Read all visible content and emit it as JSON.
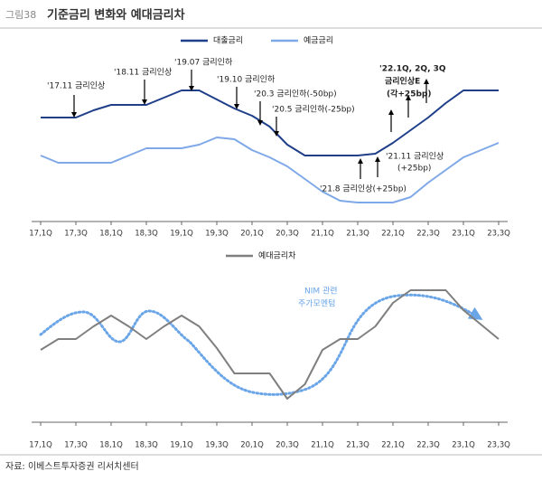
{
  "header": {
    "figure_label": "그림38",
    "title": "기준금리 변화와 예대금리차"
  },
  "chart_data": [
    {
      "type": "line",
      "categories": [
        "17,1Q",
        null,
        "17,3Q",
        null,
        "18,1Q",
        null,
        "18,3Q",
        null,
        "19,1Q",
        null,
        "19,3Q",
        null,
        "20,1Q",
        null,
        "20,3Q",
        null,
        "21,1Q",
        null,
        "21,3Q",
        null,
        "22,1Q",
        null,
        "22,3Q",
        null,
        "23,1Q",
        null,
        "23,3Q"
      ],
      "series": [
        {
          "name": "대출금리",
          "color": "#1f3f8a",
          "values": [
            5.0,
            5.0,
            5.0,
            5.4,
            5.7,
            5.7,
            5.7,
            6.1,
            6.5,
            6.5,
            6.0,
            5.5,
            5.1,
            4.5,
            3.5,
            2.9,
            2.9,
            2.9,
            2.9,
            3.0,
            3.6,
            4.3,
            5.0,
            5.8,
            6.5,
            6.5,
            6.5
          ]
        },
        {
          "name": "예금금리",
          "color": "#7fa8e8",
          "values": [
            2.9,
            2.5,
            2.5,
            2.5,
            2.5,
            2.9,
            3.3,
            3.3,
            3.3,
            3.5,
            3.9,
            3.8,
            3.2,
            2.8,
            2.3,
            1.6,
            0.9,
            0.4,
            0.3,
            0.3,
            0.3,
            0.6,
            1.4,
            2.1,
            2.8,
            3.2,
            3.6
          ]
        }
      ],
      "ylim": [
        0,
        10
      ],
      "legend": "top",
      "annotations": [
        {
          "lines": [
            "'17.11 금리인상"
          ]
        },
        {
          "lines": [
            "'18.11 금리인상"
          ]
        },
        {
          "lines": [
            "'19.07 금리인하"
          ]
        },
        {
          "lines": [
            "'19.10 금리인하"
          ]
        },
        {
          "lines": [
            "'20.3 금리인하(-50bp)"
          ]
        },
        {
          "lines": [
            "'20.5 금리인하(-25bp)"
          ]
        },
        {
          "lines": [
            "'21.8 금리인상(+25bp)"
          ]
        },
        {
          "lines": [
            "'21.11 금리인상",
            "(+25bp)"
          ]
        },
        {
          "lines": [
            "'22.1Q, 2Q, 3Q",
            "금리인상E",
            "(각+25bp)"
          ]
        }
      ]
    },
    {
      "type": "line",
      "categories": [
        "17,1Q",
        null,
        "17,3Q",
        null,
        "18,1Q",
        null,
        "18,3Q",
        null,
        "19,1Q",
        null,
        "19,3Q",
        null,
        "20,1Q",
        null,
        "20,3Q",
        null,
        "21,1Q",
        null,
        "21,3Q",
        null,
        "22,1Q",
        null,
        "22,3Q",
        null,
        "23,1Q",
        null,
        "23,3Q"
      ],
      "series": [
        {
          "name": "예대금리차",
          "color": "#7f7f7f",
          "values": [
            4.0,
            4.6,
            4.6,
            5.3,
            5.9,
            5.3,
            4.6,
            5.3,
            5.9,
            5.3,
            4.1,
            2.7,
            2.7,
            2.7,
            1.3,
            2.1,
            4.0,
            4.6,
            4.6,
            5.3,
            6.6,
            7.3,
            7.3,
            7.3,
            6.2,
            5.4,
            4.6
          ]
        }
      ],
      "ylim": [
        0,
        10
      ],
      "legend": "top",
      "annotations": [
        {
          "lines": [
            "NIM 관련",
            "주가모멘텀"
          ]
        }
      ]
    }
  ],
  "source": "자료: 이베스트투자증권 리서치센터"
}
